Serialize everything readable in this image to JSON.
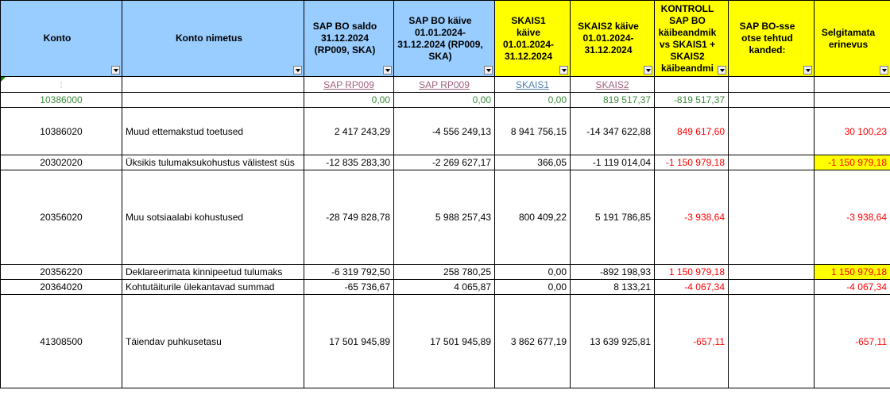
{
  "headers": {
    "konto": "Konto",
    "nimetus": "Konto nimetus",
    "saldo": "SAP BO saldo 31.12.2024 (RP009, SKA)",
    "kaive": "SAP BO käive 01.01.2024-31.12.2024 (RP009, SKA)",
    "skais1": "SKAIS1 käive 01.01.2024-31.12.2024",
    "skais2": "SKAIS2 käive 01.01.2024-31.12.2024",
    "kontroll": "KONTROLL SAP BO käibeandmik vs SKAIS1 + SKAIS2 käibeandmi",
    "otse": "SAP BO-sse otse tehtud kanded:",
    "selgitamata": "Selgitamata erinevus"
  },
  "subrow": {
    "konto": "⁞",
    "saldo": "SAP RP009",
    "kaive": "SAP RP009",
    "skais1": "SKAIS1",
    "skais2": "SKAIS2"
  },
  "rows": [
    {
      "konto": "10386000",
      "nimetus": "",
      "saldo": "0,00",
      "kaive": "0,00",
      "skais1": "0,00",
      "skais2": "819 517,37",
      "kontroll": "-819 517,37",
      "otse": "",
      "selgitamata": ""
    },
    {
      "konto": "10386020",
      "nimetus": "Muud ettemakstud toetused",
      "saldo": "2 417 243,29",
      "kaive": "-4 556 249,13",
      "skais1": "8 941 756,15",
      "skais2": "-14 347 622,88",
      "kontroll": "849 617,60",
      "otse": "",
      "selgitamata": "30 100,23"
    },
    {
      "konto": "20302020",
      "nimetus": "Üksikis tulumaksukohustus välistest süs",
      "saldo": "-12 835 283,30",
      "kaive": "-2 269 627,17",
      "skais1": "366,05",
      "skais2": "-1 119 014,04",
      "kontroll": "-1 150 979,18",
      "otse": "",
      "selgitamata": "-1 150 979,18"
    },
    {
      "konto": "20356020",
      "nimetus": "Muu sotsiaalabi kohustused",
      "saldo": "-28 749 828,78",
      "kaive": "5 988 257,43",
      "skais1": "800 409,22",
      "skais2": "5 191 786,85",
      "kontroll": "-3 938,64",
      "otse": "",
      "selgitamata": "-3 938,64"
    },
    {
      "konto": "20356220",
      "nimetus": "Deklareerimata kinnipeetud tulumaks",
      "saldo": "-6 319 792,50",
      "kaive": "258 780,25",
      "skais1": "0,00",
      "skais2": "-892 198,93",
      "kontroll": "1 150 979,18",
      "otse": "",
      "selgitamata": "1 150 979,18"
    },
    {
      "konto": "20364020",
      "nimetus": "Kohtutäiturile ülekantavad summad",
      "saldo": "-65 736,67",
      "kaive": "4 065,87",
      "skais1": "0,00",
      "skais2": "8 133,21",
      "kontroll": "-4 067,34",
      "otse": "",
      "selgitamata": "-4 067,34"
    },
    {
      "konto": "41308500",
      "nimetus": "Täiendav puhkusetasu",
      "saldo": "17 501 945,89",
      "kaive": "17 501 945,89",
      "skais1": "3 862 677,19",
      "skais2": "13 639 925,81",
      "kontroll": "-657,11",
      "otse": "",
      "selgitamata": "-657,11"
    }
  ],
  "colors": {
    "header_blue": "#99ccff",
    "highlight": "#ffff00",
    "negative": "#ff0000",
    "green": "#3c8c3c"
  }
}
